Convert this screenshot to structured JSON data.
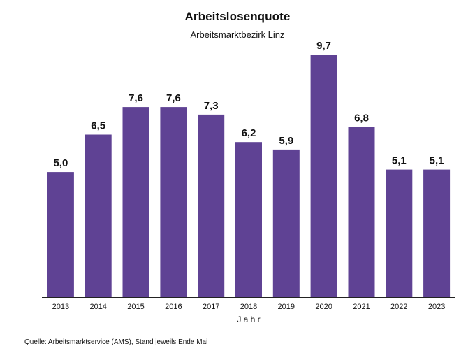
{
  "chart_data": {
    "type": "bar",
    "title": "Arbeitslosenquote",
    "subtitle": "Arbeitsmarktbezirk Linz",
    "xlabel": "J a h r",
    "ylabel": "",
    "categories": [
      "2013",
      "2014",
      "2015",
      "2016",
      "2017",
      "2018",
      "2019",
      "2020",
      "2021",
      "2022",
      "2023"
    ],
    "values": [
      5.0,
      6.5,
      7.6,
      7.6,
      7.3,
      6.2,
      5.9,
      9.7,
      6.8,
      5.1,
      5.1
    ],
    "value_labels": [
      "5,0",
      "6,5",
      "7,6",
      "7,6",
      "7,3",
      "6,2",
      "5,9",
      "9,7",
      "6,8",
      "5,1",
      "5,1"
    ],
    "ylim": [
      0,
      9.7
    ],
    "grid": false,
    "legend": "none",
    "bar_color": "#5f4294",
    "source": "Quelle: Arbeitsmarktservice (AMS), Stand jeweils Ende Mai"
  }
}
